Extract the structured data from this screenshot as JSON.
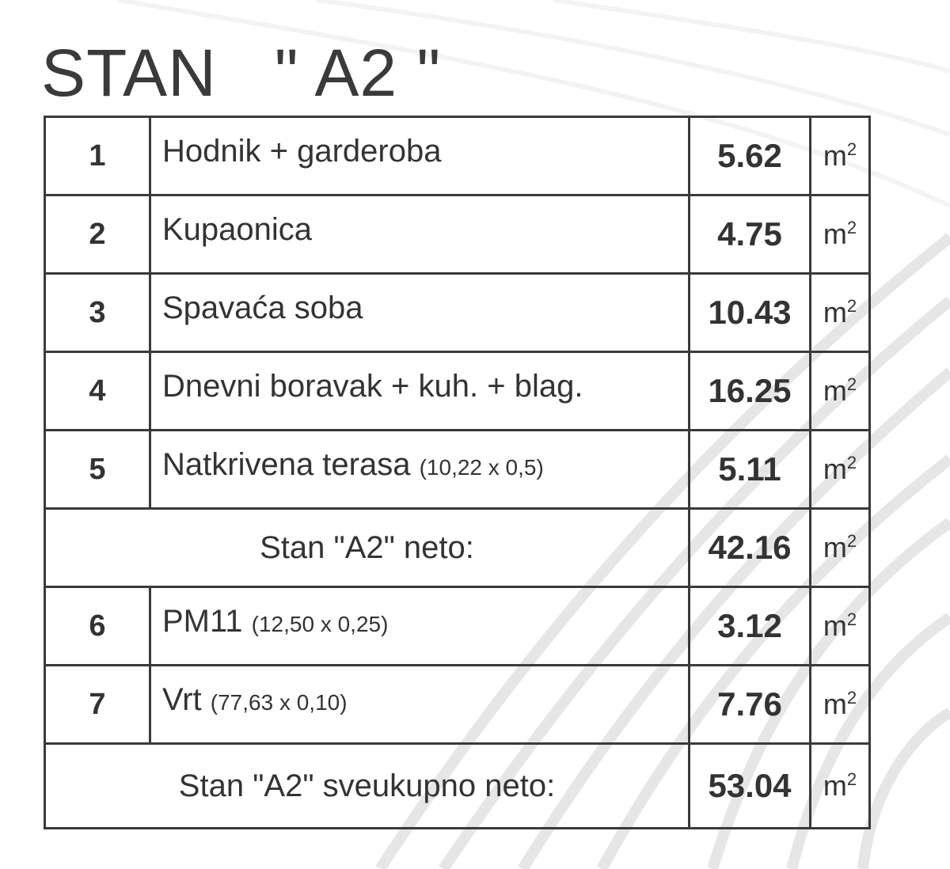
{
  "title": "STAN   \" A2 \"",
  "unit": "m",
  "unit_exp": "2",
  "rows": [
    {
      "type": "item",
      "num": "1",
      "label": "Hodnik + garderoba",
      "dim": "",
      "area": "5.62"
    },
    {
      "type": "item",
      "num": "2",
      "label": "Kupaonica",
      "dim": "",
      "area": "4.75"
    },
    {
      "type": "item",
      "num": "3",
      "label": "Spavaća soba",
      "dim": "",
      "area": "10.43"
    },
    {
      "type": "item",
      "num": "4",
      "label": "Dnevni boravak + kuh. + blag.",
      "dim": "",
      "area": "16.25"
    },
    {
      "type": "item",
      "num": "5",
      "label": "Natkrivena terasa",
      "dim": "(10,22 x 0,5)",
      "area": "5.11"
    },
    {
      "type": "total",
      "label": "Stan \"A2\" neto:",
      "area": "42.16"
    },
    {
      "type": "item",
      "num": "6",
      "label": "PM11",
      "dim": "(12,50 x 0,25)",
      "area": "3.12"
    },
    {
      "type": "item",
      "num": "7",
      "label": "Vrt",
      "dim": "(77,63 x 0,10)",
      "area": "7.76"
    },
    {
      "type": "total",
      "label": "Stan \"A2\" sveukupno neto:",
      "area": "53.04"
    }
  ]
}
